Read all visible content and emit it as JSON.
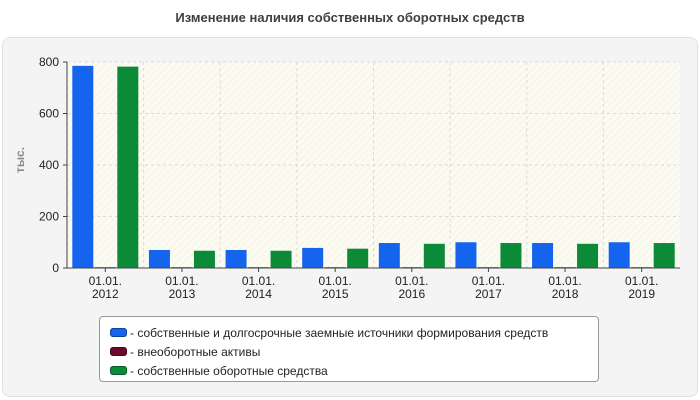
{
  "chart_data": {
    "type": "bar",
    "title": "Изменение наличия собственных оборотных средств",
    "ylabel": "тыс.",
    "xlabel": "",
    "ylim": [
      0,
      800
    ],
    "yticks": [
      "0",
      "200",
      "400",
      "600",
      "800"
    ],
    "grid": true,
    "legend_position": "bottom",
    "categories": [
      [
        "01.01.",
        "2012"
      ],
      [
        "01.01.",
        "2013"
      ],
      [
        "01.01.",
        "2014"
      ],
      [
        "01.01.",
        "2015"
      ],
      [
        "01.01.",
        "2016"
      ],
      [
        "01.01.",
        "2017"
      ],
      [
        "01.01.",
        "2018"
      ],
      [
        "01.01.",
        "2019"
      ]
    ],
    "series": [
      {
        "name": "- собственные и долгосрочные заемные источники формирования средств",
        "color": "#1564ee",
        "values": [
          785,
          70,
          70,
          78,
          97,
          100,
          97,
          100
        ]
      },
      {
        "name": "- внеоборотные активы",
        "color": "#6b0a2e",
        "values": [
          3,
          3,
          3,
          3,
          3,
          3,
          3,
          3
        ]
      },
      {
        "name": "- собственные оборотные средства",
        "color": "#0b8a37",
        "values": [
          782,
          67,
          67,
          75,
          94,
          97,
          94,
          97
        ]
      }
    ]
  }
}
